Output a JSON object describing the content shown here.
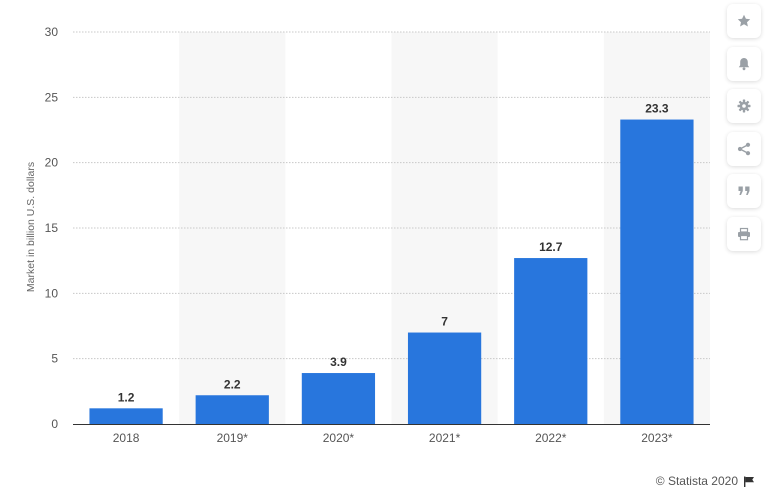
{
  "chart_data": {
    "type": "bar",
    "categories": [
      "2018",
      "2019*",
      "2020*",
      "2021*",
      "2022*",
      "2023*"
    ],
    "values": [
      1.2,
      2.2,
      3.9,
      7,
      12.7,
      23.3
    ],
    "data_labels": [
      "1.2",
      "2.2",
      "3.9",
      "7",
      "12.7",
      "23.3"
    ],
    "ylabel": "Market in billion U.S. dollars",
    "ylim": [
      0,
      30
    ],
    "yticks": [
      0,
      5,
      10,
      15,
      20,
      25,
      30
    ],
    "grid": true,
    "bar_color": "#2876dd",
    "alternate_band_color": "#f7f7f7"
  },
  "toolbar": {
    "buttons": [
      "star-icon",
      "bell-icon",
      "gear-icon",
      "share-icon",
      "quote-icon",
      "print-icon"
    ]
  },
  "credit": {
    "text": "© Statista 2020"
  }
}
